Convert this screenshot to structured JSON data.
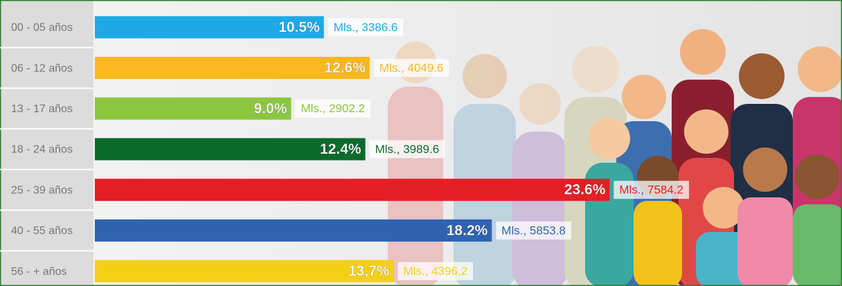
{
  "chart_data": {
    "type": "bar",
    "categories": [
      "00 - 05 años",
      "06 - 12 años",
      "13 - 17 años",
      "18 - 24 años",
      "25 - 39 años",
      "40 - 55 años",
      "56 - + años"
    ],
    "values": [
      10.5,
      12.6,
      9.0,
      12.4,
      23.6,
      18.2,
      13.7
    ],
    "value_labels": [
      "10.5%",
      "12.6%",
      "9.0%",
      "12.4%",
      "23.6%",
      "18.2%",
      "13,7%"
    ],
    "annotations": [
      "Mls., 3386.6",
      "Mls., 4049.6",
      "Mls., 2902.2",
      "Mls., 3989.6",
      "Mls., 7584.2",
      "Mls., 5853.8",
      "Mls., 4396.2"
    ],
    "colors": [
      "#1ea9e6",
      "#fbb820",
      "#8cc63f",
      "#0a6b2a",
      "#e41e25",
      "#2f63b0",
      "#f4d015"
    ],
    "xlim": [
      0,
      34
    ]
  }
}
